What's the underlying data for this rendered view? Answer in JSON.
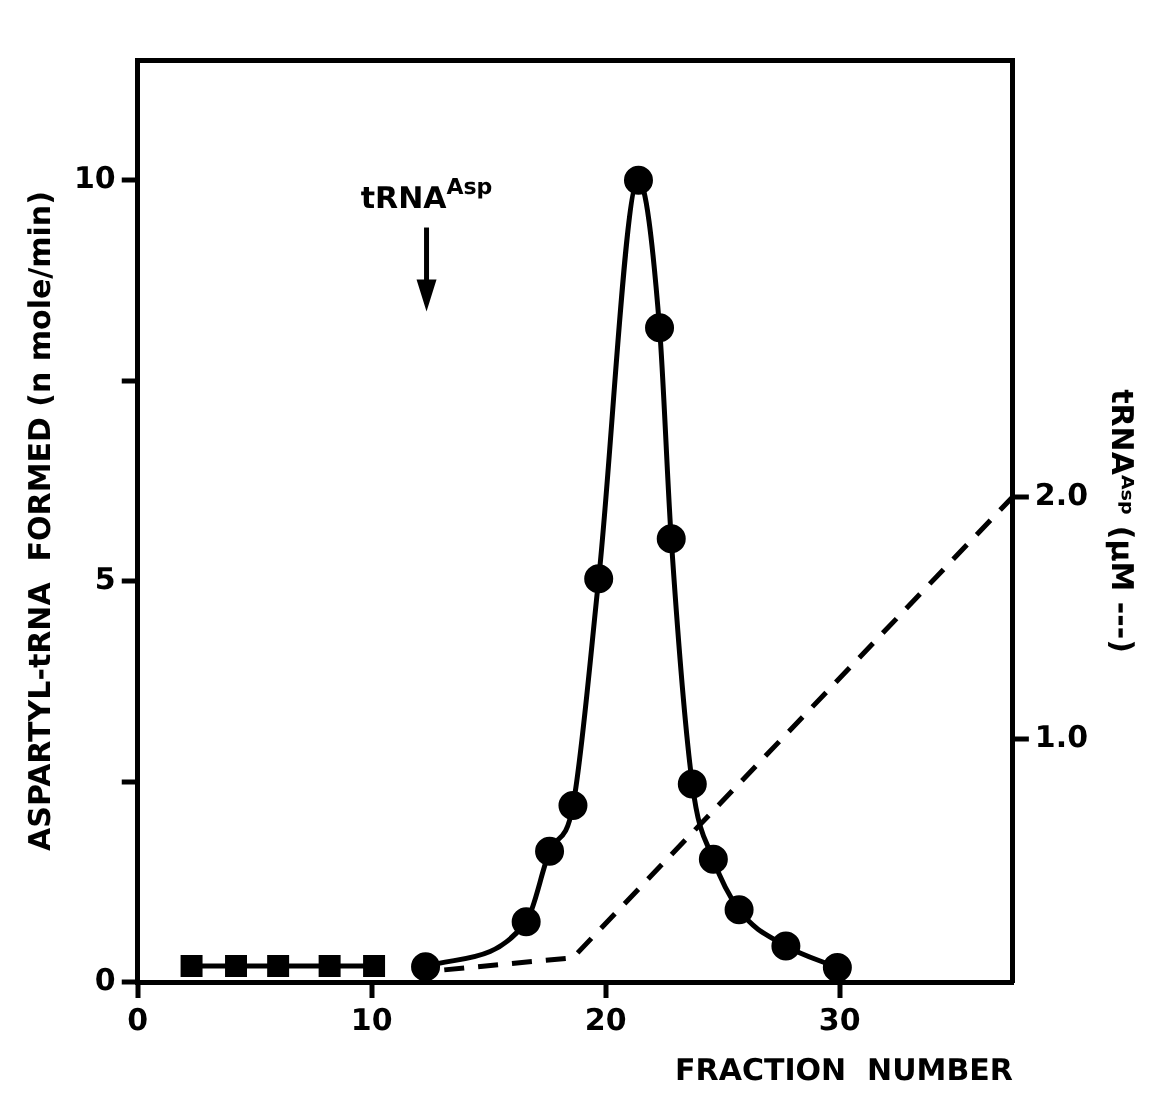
{
  "chart_data": {
    "type": "line",
    "xlabel": "FRACTION  NUMBER",
    "ylabel": "ASPARTYL-tRNA  FORMED (n mole/min)",
    "y2label": "tRNAᴬˢᵖ (µM ---)",
    "series": [
      {
        "type": "line",
        "marker": "square",
        "line_style": "solid",
        "color": "#000000",
        "x": [
          2.3,
          4.2,
          6.0,
          8.2,
          10.1
        ],
        "values": [
          0.2,
          0.2,
          0.2,
          0.2,
          0.2
        ]
      },
      {
        "type": "line",
        "marker": "circle",
        "line_style": "solid",
        "color": "#000000",
        "x": [
          12.3,
          16.6,
          17.6,
          18.6,
          19.7,
          21.4,
          22.3,
          22.8,
          23.7,
          24.6,
          25.7,
          27.7,
          29.9
        ],
        "values": [
          0.19,
          0.75,
          1.63,
          2.2,
          5.03,
          10.0,
          8.16,
          5.53,
          2.47,
          1.53,
          0.9,
          0.45,
          0.18
        ]
      },
      {
        "type": "line",
        "marker": "none",
        "line_style": "dashed",
        "axis": "y2",
        "color": "#000000",
        "x": [
          13.1,
          18.6,
          37.4
        ],
        "values": [
          0.05,
          0.1,
          2.0
        ]
      }
    ],
    "xlim": [
      0,
      37.4
    ],
    "xticks": [
      0,
      10,
      20,
      30
    ],
    "ylim": [
      0,
      11.5
    ],
    "yticks": [
      0,
      {
        "value": 2.5,
        "label": null
      },
      5,
      {
        "value": 7.5,
        "label": null
      },
      10
    ],
    "y2lim": [
      0,
      3.8
    ],
    "y2ticks": [
      {
        "value": 1,
        "label": "1.0"
      },
      {
        "value": 2,
        "label": "2.0"
      }
    ],
    "annotations": [
      "tRNA$^{Asp}$"
    ],
    "grid": false,
    "legend": false
  }
}
